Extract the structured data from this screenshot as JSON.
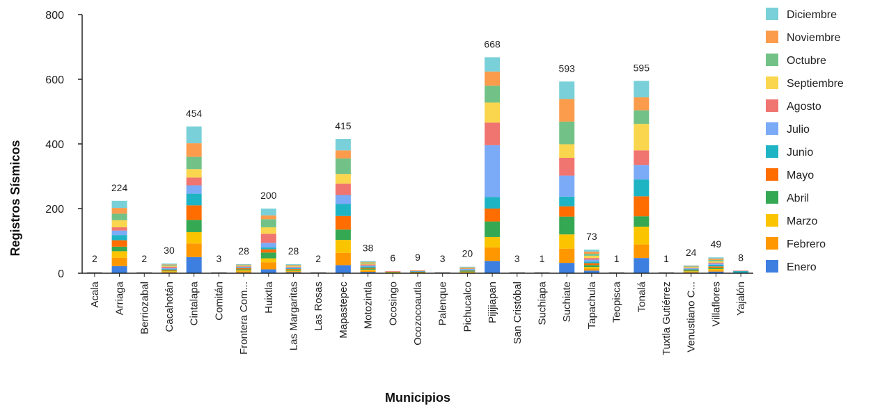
{
  "chart_data": {
    "type": "bar",
    "stacked": true,
    "title": "",
    "xlabel": "Municipios",
    "ylabel": "Registros Sísmicos",
    "ylim": [
      0,
      800
    ],
    "yticks": [
      0,
      200,
      400,
      600,
      800
    ],
    "grid": false,
    "legend_position": "right",
    "categories": [
      "Acala",
      "Arriaga",
      "Berriozabal",
      "Cacahotán",
      "Cintalapa",
      "Comitán",
      "Frontera Com...",
      "Huixtla",
      "Las Margaritas",
      "Las Rosas",
      "Mapastepec",
      "Motozintla",
      "Ocosingo",
      "Ocozocoautla",
      "Palenque",
      "Pichucalco",
      "Pijijiapan",
      "San Cristóbal",
      "Suchiapa",
      "Suchiate",
      "Tapachula",
      "Teopisca",
      "Tonalá",
      "Tuxtla Gutiérrez",
      "Venustiano C...",
      "Villaflores",
      "Yajalón"
    ],
    "totals": [
      2,
      224,
      2,
      30,
      454,
      3,
      28,
      200,
      28,
      2,
      415,
      38,
      6,
      9,
      3,
      20,
      668,
      3,
      1,
      593,
      73,
      1,
      595,
      1,
      24,
      49,
      8
    ],
    "series": [
      {
        "name": "Enero",
        "color": "#3d7fe0",
        "values": [
          0,
          22,
          0,
          2,
          50,
          0,
          2,
          12,
          3,
          0,
          25,
          4,
          0,
          0,
          0,
          2,
          38,
          0,
          0,
          32,
          8,
          0,
          47,
          0,
          2,
          5,
          0
        ]
      },
      {
        "name": "Febrero",
        "color": "#ff9800",
        "values": [
          0,
          26,
          0,
          2,
          42,
          1,
          4,
          22,
          3,
          0,
          38,
          4,
          2,
          2,
          1,
          1,
          42,
          1,
          0,
          44,
          6,
          0,
          42,
          0,
          2,
          4,
          0
        ]
      },
      {
        "name": "Marzo",
        "color": "#fbc400",
        "values": [
          0,
          20,
          0,
          2,
          35,
          1,
          3,
          12,
          2,
          0,
          40,
          3,
          2,
          1,
          0,
          1,
          32,
          1,
          1,
          44,
          5,
          0,
          55,
          0,
          2,
          4,
          0
        ]
      },
      {
        "name": "Abril",
        "color": "#34a853",
        "values": [
          0,
          14,
          0,
          2,
          38,
          0,
          3,
          18,
          3,
          0,
          32,
          3,
          1,
          1,
          0,
          2,
          48,
          0,
          0,
          55,
          6,
          0,
          32,
          0,
          3,
          4,
          0
        ]
      },
      {
        "name": "Mayo",
        "color": "#ff6d00",
        "values": [
          0,
          20,
          1,
          3,
          45,
          1,
          4,
          10,
          2,
          0,
          42,
          3,
          0,
          1,
          1,
          2,
          40,
          0,
          0,
          32,
          6,
          0,
          62,
          1,
          2,
          4,
          1
        ]
      },
      {
        "name": "Junio",
        "color": "#1fb4c4",
        "values": [
          1,
          16,
          1,
          2,
          36,
          0,
          2,
          6,
          2,
          1,
          37,
          4,
          0,
          1,
          0,
          3,
          36,
          0,
          0,
          30,
          5,
          0,
          52,
          0,
          2,
          5,
          6
        ]
      },
      {
        "name": "Julio",
        "color": "#7baaf7",
        "values": [
          0,
          14,
          0,
          3,
          26,
          0,
          2,
          14,
          3,
          1,
          28,
          3,
          0,
          1,
          0,
          2,
          160,
          0,
          0,
          65,
          6,
          0,
          45,
          0,
          2,
          4,
          0
        ]
      },
      {
        "name": "Agosto",
        "color": "#f07470",
        "values": [
          0,
          10,
          0,
          4,
          24,
          0,
          2,
          28,
          2,
          0,
          35,
          3,
          1,
          1,
          1,
          2,
          70,
          1,
          0,
          55,
          5,
          0,
          45,
          0,
          2,
          3,
          1
        ]
      },
      {
        "name": "Septiembre",
        "color": "#fad64e",
        "values": [
          0,
          22,
          0,
          2,
          26,
          0,
          2,
          20,
          2,
          0,
          30,
          3,
          0,
          0,
          0,
          1,
          62,
          0,
          0,
          42,
          7,
          0,
          82,
          0,
          2,
          4,
          0
        ]
      },
      {
        "name": "Octubre",
        "color": "#72c288",
        "values": [
          0,
          20,
          0,
          3,
          38,
          0,
          2,
          25,
          2,
          0,
          48,
          3,
          0,
          0,
          0,
          1,
          52,
          0,
          0,
          70,
          6,
          0,
          42,
          0,
          2,
          4,
          0
        ]
      },
      {
        "name": "Noviembre",
        "color": "#fb9c4c",
        "values": [
          1,
          18,
          0,
          2,
          42,
          0,
          1,
          12,
          2,
          0,
          25,
          2,
          0,
          1,
          0,
          1,
          44,
          0,
          0,
          70,
          7,
          0,
          40,
          0,
          2,
          4,
          0
        ]
      },
      {
        "name": "Diciembre",
        "color": "#79d0d8",
        "values": [
          0,
          22,
          0,
          3,
          52,
          0,
          1,
          21,
          2,
          0,
          35,
          3,
          0,
          0,
          0,
          2,
          44,
          0,
          0,
          54,
          6,
          1,
          51,
          0,
          1,
          4,
          0
        ]
      }
    ]
  }
}
